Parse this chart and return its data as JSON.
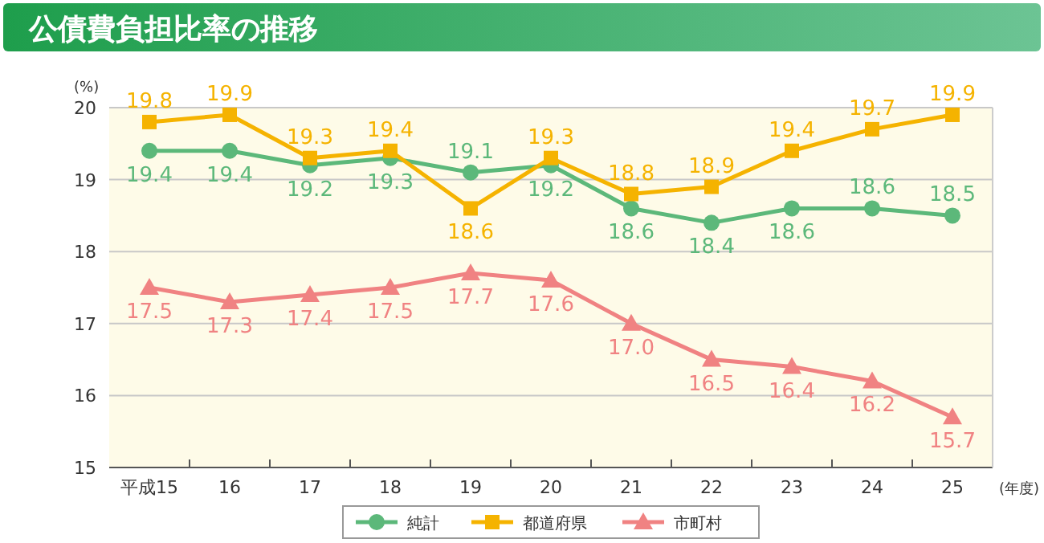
{
  "chart_data": {
    "type": "line",
    "title": "公債費負担比率の推移",
    "ylabel": "(%)",
    "xlabel": "(年度)",
    "categories": [
      "平成15",
      "16",
      "17",
      "18",
      "19",
      "20",
      "21",
      "22",
      "23",
      "24",
      "25"
    ],
    "series": [
      {
        "name": "純計",
        "color": "#5cb87a",
        "marker": "circle",
        "values": [
          19.4,
          19.4,
          19.2,
          19.3,
          19.1,
          19.2,
          18.6,
          18.4,
          18.6,
          18.6,
          18.5
        ],
        "value_labels": [
          "19.4",
          "19.4",
          "19.2",
          "19.3",
          "19.1",
          "19.2",
          "18.6",
          "18.4",
          "18.6",
          "18.6",
          "18.5"
        ]
      },
      {
        "name": "都道府県",
        "color": "#f5b300",
        "marker": "square",
        "values": [
          19.8,
          19.9,
          19.3,
          19.4,
          18.6,
          19.3,
          18.8,
          18.9,
          19.4,
          19.7,
          19.9
        ],
        "value_labels": [
          "19.8",
          "19.9",
          "19.3",
          "19.4",
          "18.6",
          "19.3",
          "18.8",
          "18.9",
          "19.4",
          "19.7",
          "19.9"
        ]
      },
      {
        "name": "市町村",
        "color": "#f08282",
        "marker": "triangle",
        "values": [
          17.5,
          17.3,
          17.4,
          17.5,
          17.7,
          17.6,
          17.0,
          16.5,
          16.4,
          16.2,
          15.7
        ],
        "value_labels": [
          "17.5",
          "17.3",
          "17.4",
          "17.5",
          "17.7",
          "17.6",
          "17.0",
          "16.5",
          "16.4",
          "16.2",
          "15.7"
        ]
      }
    ],
    "ylim": [
      15,
      20
    ],
    "yticks": [
      15,
      16,
      17,
      18,
      19,
      20
    ],
    "grid": "y",
    "legend": "bottom"
  }
}
